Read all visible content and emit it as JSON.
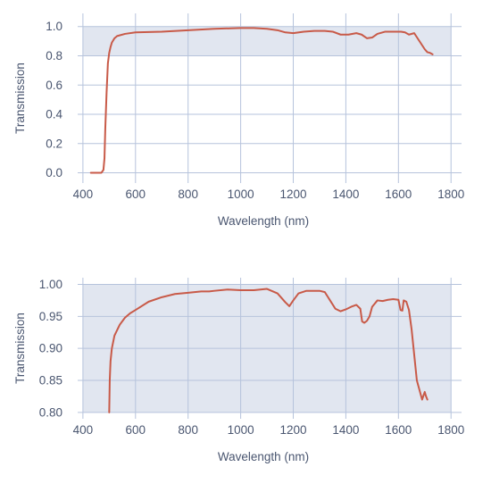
{
  "chart_data": [
    {
      "type": "line",
      "xlabel": "Wavelength (nm)",
      "ylabel": "Transmission",
      "xlim": [
        380,
        1840
      ],
      "ylim": [
        -0.07,
        1.09
      ],
      "xticks": [
        400,
        600,
        800,
        1000,
        1200,
        1400,
        1600,
        1800
      ],
      "yticks": [
        0.0,
        0.2,
        0.4,
        0.6,
        0.8,
        1.0
      ],
      "ytick_labels": [
        "0.0",
        "0.2",
        "0.4",
        "0.6",
        "0.8",
        "1.0"
      ],
      "grid": true,
      "shaded_band": [
        0.8,
        1.0
      ],
      "series": [
        {
          "color": "#c85a48",
          "x": [
            430,
            470,
            478,
            482,
            485,
            490,
            495,
            500,
            505,
            510,
            520,
            530,
            560,
            600,
            700,
            800,
            900,
            1000,
            1050,
            1100,
            1140,
            1170,
            1200,
            1240,
            1280,
            1320,
            1350,
            1380,
            1410,
            1440,
            1460,
            1480,
            1500,
            1520,
            1550,
            1580,
            1610,
            1625,
            1640,
            1660,
            1680,
            1700,
            1710,
            1720,
            1730
          ],
          "y": [
            0.0,
            0.0,
            0.02,
            0.1,
            0.3,
            0.55,
            0.75,
            0.82,
            0.86,
            0.89,
            0.92,
            0.935,
            0.95,
            0.96,
            0.965,
            0.975,
            0.985,
            0.99,
            0.99,
            0.985,
            0.975,
            0.96,
            0.955,
            0.965,
            0.97,
            0.97,
            0.965,
            0.945,
            0.945,
            0.955,
            0.945,
            0.92,
            0.925,
            0.95,
            0.965,
            0.965,
            0.965,
            0.96,
            0.945,
            0.955,
            0.9,
            0.845,
            0.825,
            0.82,
            0.81
          ]
        }
      ]
    },
    {
      "type": "line",
      "xlabel": "Wavelength (nm)",
      "ylabel": "Transmission",
      "xlim": [
        380,
        1840
      ],
      "ylim": [
        0.79,
        1.0105
      ],
      "xticks": [
        400,
        600,
        800,
        1000,
        1200,
        1400,
        1600,
        1800
      ],
      "yticks": [
        0.8,
        0.85,
        0.9,
        0.95,
        1.0
      ],
      "ytick_labels": [
        "0.80",
        "0.85",
        "0.90",
        "0.95",
        "1.00"
      ],
      "grid": true,
      "shaded_band": [
        0.8,
        1.0
      ],
      "series": [
        {
          "color": "#c85a48",
          "x": [
            500,
            502,
            505,
            510,
            520,
            540,
            560,
            580,
            600,
            650,
            700,
            750,
            800,
            850,
            880,
            900,
            950,
            1000,
            1050,
            1100,
            1140,
            1170,
            1185,
            1200,
            1220,
            1250,
            1280,
            1300,
            1320,
            1340,
            1360,
            1380,
            1400,
            1420,
            1440,
            1455,
            1462,
            1470,
            1480,
            1490,
            1500,
            1520,
            1540,
            1560,
            1580,
            1600,
            1608,
            1615,
            1620,
            1630,
            1640,
            1650,
            1660,
            1670,
            1680,
            1690,
            1700,
            1705,
            1710
          ],
          "y": [
            0.8,
            0.85,
            0.88,
            0.9,
            0.92,
            0.937,
            0.948,
            0.955,
            0.96,
            0.973,
            0.98,
            0.985,
            0.987,
            0.989,
            0.989,
            0.99,
            0.992,
            0.991,
            0.991,
            0.993,
            0.986,
            0.972,
            0.966,
            0.975,
            0.986,
            0.99,
            0.99,
            0.99,
            0.988,
            0.975,
            0.962,
            0.958,
            0.961,
            0.965,
            0.968,
            0.962,
            0.942,
            0.94,
            0.943,
            0.95,
            0.965,
            0.975,
            0.974,
            0.976,
            0.977,
            0.976,
            0.96,
            0.959,
            0.975,
            0.973,
            0.96,
            0.93,
            0.89,
            0.85,
            0.835,
            0.82,
            0.832,
            0.825,
            0.82
          ]
        }
      ]
    }
  ],
  "colors": {
    "band": "#e1e6f0",
    "grid": "#b6c3dc",
    "text": "#4a5670",
    "line": "#c85a48"
  }
}
